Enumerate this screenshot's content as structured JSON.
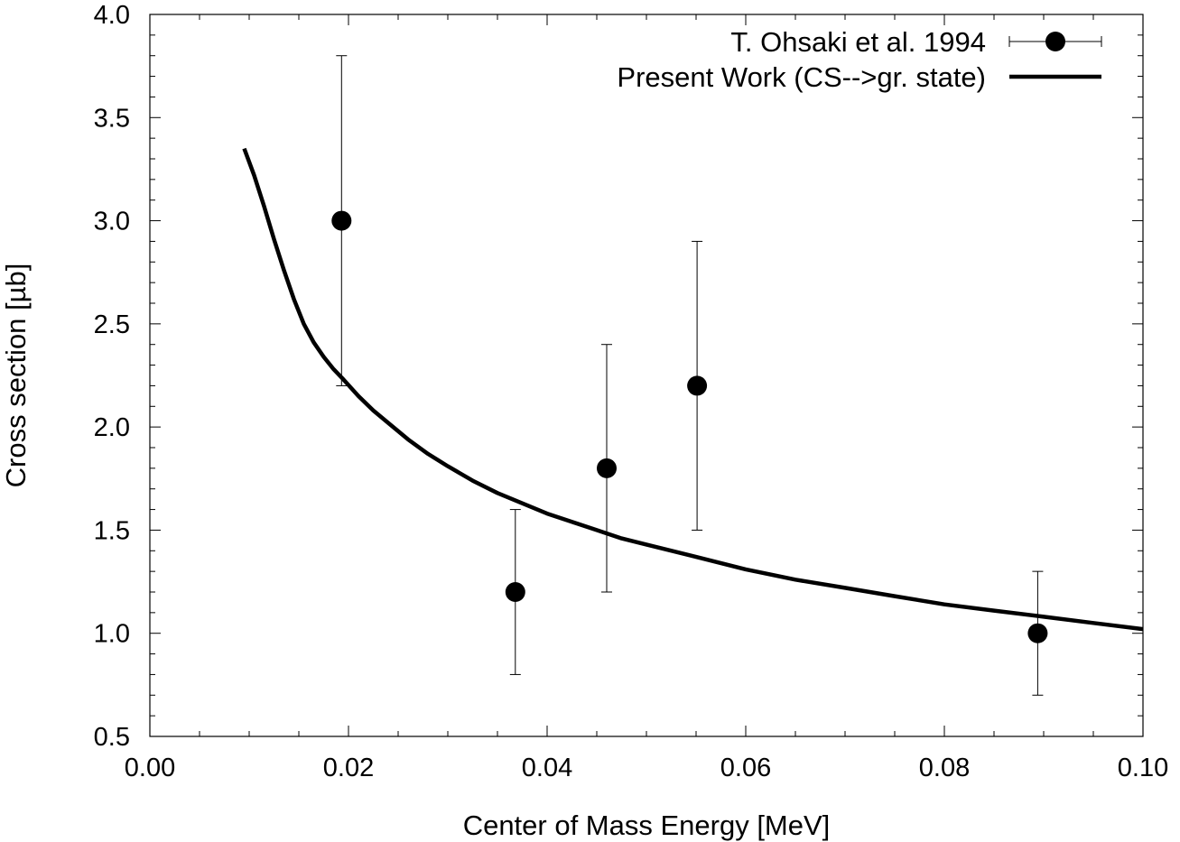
{
  "chart_data": {
    "type": "scatter",
    "title": "",
    "xlabel": "Center of Mass Energy [MeV]",
    "ylabel": "Cross section [µb]",
    "xlim": [
      0.0,
      0.1
    ],
    "ylim": [
      0.5,
      4.0
    ],
    "grid": false,
    "legend_position": "top-right",
    "x_ticks": [
      0.0,
      0.02,
      0.04,
      0.06,
      0.08,
      0.1
    ],
    "x_tick_labels": [
      "0.00",
      "0.02",
      "0.04",
      "0.06",
      "0.08",
      "0.10"
    ],
    "y_ticks": [
      0.5,
      1.0,
      1.5,
      2.0,
      2.5,
      3.0,
      3.5,
      4.0
    ],
    "y_tick_labels": [
      "0.5",
      "1.0",
      "1.5",
      "2.0",
      "2.5",
      "3.0",
      "3.5",
      "4.0"
    ],
    "series": [
      {
        "name": "T. Ohsaki et al. 1994",
        "kind": "points_with_errorbars",
        "marker": "filled-circle",
        "color": "#000000",
        "x": [
          0.0193,
          0.0368,
          0.046,
          0.0551,
          0.0894
        ],
        "y": [
          3.0,
          1.2,
          1.8,
          2.2,
          1.0
        ],
        "y_low": [
          2.2,
          0.8,
          1.2,
          1.5,
          0.7
        ],
        "y_high": [
          3.8,
          1.6,
          2.4,
          2.9,
          1.3
        ]
      },
      {
        "name": "Present Work (CS-->gr. state)",
        "kind": "line",
        "color": "#000000",
        "x": [
          0.0095,
          0.0105,
          0.0115,
          0.0125,
          0.0135,
          0.0145,
          0.0155,
          0.0165,
          0.0175,
          0.0185,
          0.0195,
          0.021,
          0.0225,
          0.024,
          0.026,
          0.028,
          0.03,
          0.0325,
          0.035,
          0.0375,
          0.04,
          0.0425,
          0.045,
          0.0475,
          0.05,
          0.055,
          0.06,
          0.065,
          0.07,
          0.075,
          0.08,
          0.085,
          0.09,
          0.095,
          0.1
        ],
        "y": [
          3.35,
          3.22,
          3.07,
          2.91,
          2.76,
          2.62,
          2.5,
          2.41,
          2.34,
          2.28,
          2.23,
          2.15,
          2.08,
          2.02,
          1.94,
          1.87,
          1.81,
          1.74,
          1.68,
          1.63,
          1.58,
          1.54,
          1.5,
          1.46,
          1.43,
          1.37,
          1.31,
          1.26,
          1.22,
          1.18,
          1.14,
          1.11,
          1.08,
          1.05,
          1.02
        ]
      }
    ]
  }
}
